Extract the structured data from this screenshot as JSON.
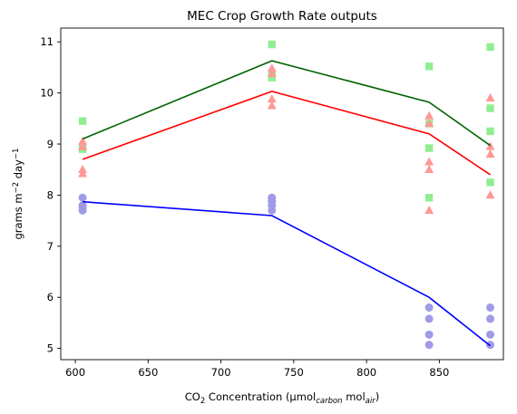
{
  "chart_data": {
    "type": "scatter",
    "title": "MEC Crop Growth Rate outputs",
    "xlabel": {
      "prefix": "CO",
      "sub1": "2",
      "mid1": " Concentration (µmol",
      "sub2": "carbon",
      "mid2": " mol",
      "sub3": "air",
      "suffix": ")"
    },
    "ylabel": {
      "prefix": "grams m",
      "sup1": "−2",
      "mid": " day",
      "sup2": "−1"
    },
    "xlim": [
      590,
      894
    ],
    "ylim": [
      4.78,
      11.27
    ],
    "xticks": [
      600,
      650,
      700,
      750,
      800,
      850
    ],
    "yticks": [
      5,
      6,
      7,
      8,
      9,
      10,
      11
    ],
    "grid": false,
    "legend": "none",
    "scatter_series": [
      {
        "marker": "square",
        "color": "#90ee90",
        "points": [
          [
            605,
            9.45
          ],
          [
            605,
            8.95
          ],
          [
            605,
            8.9
          ],
          [
            735,
            10.95
          ],
          [
            735,
            10.35
          ],
          [
            735,
            10.3
          ],
          [
            843,
            10.52
          ],
          [
            843,
            9.4
          ],
          [
            843,
            8.92
          ],
          [
            843,
            7.95
          ],
          [
            885,
            10.9
          ],
          [
            885,
            9.7
          ],
          [
            885,
            9.25
          ],
          [
            885,
            8.25
          ]
        ]
      },
      {
        "marker": "triangle",
        "color": "#ff9896",
        "points": [
          [
            605,
            9.05
          ],
          [
            605,
            8.95
          ],
          [
            605,
            8.5
          ],
          [
            605,
            8.42
          ],
          [
            735,
            10.48
          ],
          [
            735,
            10.38
          ],
          [
            735,
            9.88
          ],
          [
            735,
            9.75
          ],
          [
            843,
            9.55
          ],
          [
            843,
            9.4
          ],
          [
            843,
            8.65
          ],
          [
            843,
            8.5
          ],
          [
            843,
            7.7
          ],
          [
            885,
            9.9
          ],
          [
            885,
            8.95
          ],
          [
            885,
            8.8
          ],
          [
            885,
            8.0
          ]
        ]
      },
      {
        "marker": "circle",
        "color": "#a09be7",
        "points": [
          [
            605,
            7.95
          ],
          [
            605,
            7.8
          ],
          [
            605,
            7.75
          ],
          [
            605,
            7.7
          ],
          [
            735,
            7.95
          ],
          [
            735,
            7.88
          ],
          [
            735,
            7.8
          ],
          [
            735,
            7.7
          ],
          [
            843,
            5.8
          ],
          [
            843,
            5.58
          ],
          [
            843,
            5.27
          ],
          [
            843,
            5.07
          ],
          [
            885,
            5.8
          ],
          [
            885,
            5.58
          ],
          [
            885,
            5.27
          ],
          [
            885,
            5.07
          ]
        ]
      }
    ],
    "line_series": [
      {
        "color": "#006400",
        "points": [
          [
            605,
            9.1
          ],
          [
            735,
            10.63
          ],
          [
            843,
            9.82
          ],
          [
            885,
            8.97
          ]
        ]
      },
      {
        "color": "#ff0000",
        "points": [
          [
            605,
            8.7
          ],
          [
            735,
            10.03
          ],
          [
            843,
            9.2
          ],
          [
            885,
            8.4
          ]
        ]
      },
      {
        "color": "#0000ff",
        "points": [
          [
            605,
            7.87
          ],
          [
            735,
            7.6
          ],
          [
            843,
            6.0
          ],
          [
            885,
            5.05
          ]
        ]
      }
    ]
  }
}
